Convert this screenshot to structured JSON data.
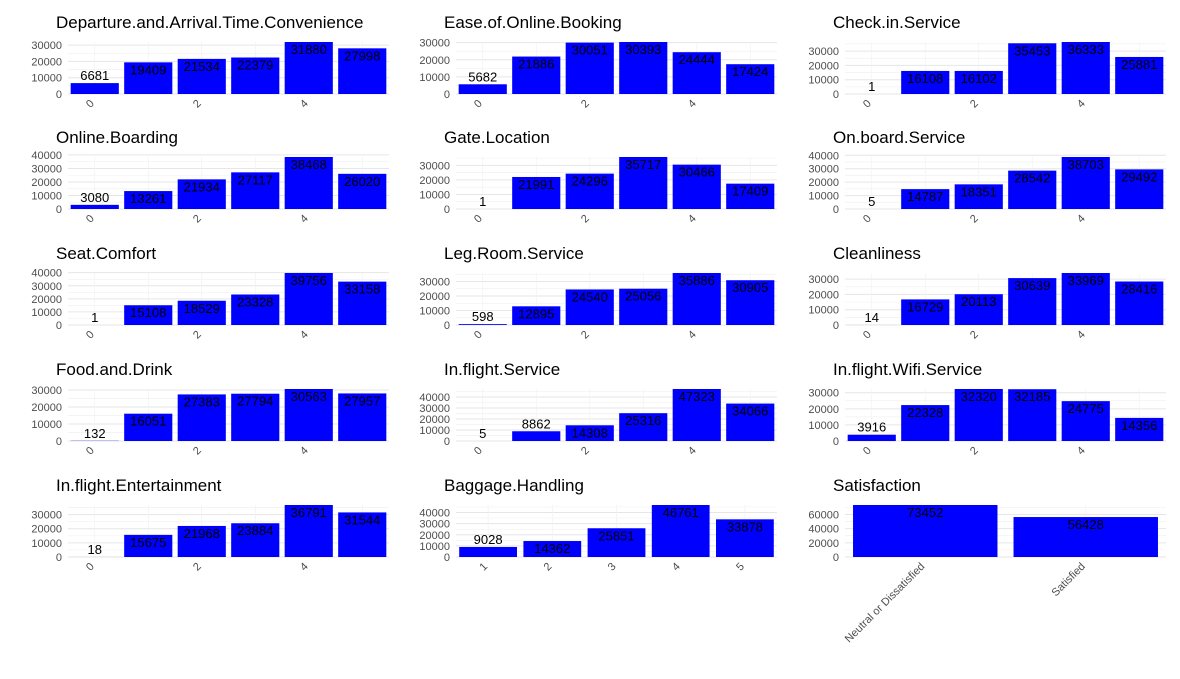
{
  "chart_data": [
    {
      "type": "bar",
      "title": "Departure.and.Arrival.Time.Convenience",
      "categories": [
        "0",
        "1",
        "2",
        "3",
        "4",
        "5"
      ],
      "x_tick_labels": [
        "0",
        "2",
        "4"
      ],
      "values": [
        6681,
        19409,
        21534,
        22379,
        31880,
        27998
      ],
      "y_tick_labels": [
        "0",
        "10000",
        "20000",
        "30000"
      ],
      "ylim": [
        0,
        31880
      ],
      "bar_color": "#0000FF",
      "grid": true
    },
    {
      "type": "bar",
      "title": "Ease.of.Online.Booking",
      "categories": [
        "0",
        "1",
        "2",
        "3",
        "4",
        "5"
      ],
      "x_tick_labels": [
        "0",
        "2",
        "4"
      ],
      "values": [
        5682,
        21886,
        30051,
        30393,
        24444,
        17424
      ],
      "y_tick_labels": [
        "0",
        "10000",
        "20000",
        "30000"
      ],
      "ylim": [
        0,
        30393
      ],
      "bar_color": "#0000FF",
      "grid": true
    },
    {
      "type": "bar",
      "title": "Check.in.Service",
      "categories": [
        "0",
        "1",
        "2",
        "3",
        "4",
        "5"
      ],
      "x_tick_labels": [
        "0",
        "2",
        "4"
      ],
      "values": [
        1,
        16108,
        16102,
        35453,
        36333,
        25881
      ],
      "y_tick_labels": [
        "0",
        "10000",
        "20000",
        "30000"
      ],
      "ylim": [
        0,
        36333
      ],
      "bar_color": "#0000FF",
      "grid": true
    },
    {
      "type": "bar",
      "title": "Online.Boarding",
      "categories": [
        "0",
        "1",
        "2",
        "3",
        "4",
        "5"
      ],
      "x_tick_labels": [
        "0",
        "2",
        "4"
      ],
      "values": [
        3080,
        13261,
        21934,
        27117,
        38468,
        26020
      ],
      "y_tick_labels": [
        "0",
        "10000",
        "20000",
        "30000",
        "40000"
      ],
      "ylim": [
        0,
        38468
      ],
      "bar_color": "#0000FF",
      "grid": true
    },
    {
      "type": "bar",
      "title": "Gate.Location",
      "categories": [
        "0",
        "1",
        "2",
        "3",
        "4",
        "5"
      ],
      "x_tick_labels": [
        "0",
        "2",
        "4"
      ],
      "values": [
        1,
        21991,
        24296,
        35717,
        30466,
        17409
      ],
      "y_tick_labels": [
        "0",
        "10000",
        "20000",
        "30000"
      ],
      "ylim": [
        0,
        35717
      ],
      "bar_color": "#0000FF",
      "grid": true
    },
    {
      "type": "bar",
      "title": "On.board.Service",
      "categories": [
        "0",
        "1",
        "2",
        "3",
        "4",
        "5"
      ],
      "x_tick_labels": [
        "0",
        "2",
        "4"
      ],
      "values": [
        5,
        14787,
        18351,
        28542,
        38703,
        29492
      ],
      "y_tick_labels": [
        "0",
        "10000",
        "20000",
        "30000",
        "40000"
      ],
      "ylim": [
        0,
        38703
      ],
      "bar_color": "#0000FF",
      "grid": true
    },
    {
      "type": "bar",
      "title": "Seat.Comfort",
      "categories": [
        "0",
        "1",
        "2",
        "3",
        "4",
        "5"
      ],
      "x_tick_labels": [
        "0",
        "2",
        "4"
      ],
      "values": [
        1,
        15108,
        18529,
        23328,
        39756,
        33158
      ],
      "y_tick_labels": [
        "0",
        "10000",
        "20000",
        "30000",
        "40000"
      ],
      "ylim": [
        0,
        39756
      ],
      "bar_color": "#0000FF",
      "grid": true
    },
    {
      "type": "bar",
      "title": "Leg.Room.Service",
      "categories": [
        "0",
        "1",
        "2",
        "3",
        "4",
        "5"
      ],
      "x_tick_labels": [
        "0",
        "2",
        "4"
      ],
      "values": [
        598,
        12895,
        24540,
        25056,
        35886,
        30905
      ],
      "y_tick_labels": [
        "0",
        "10000",
        "20000",
        "30000"
      ],
      "ylim": [
        0,
        35886
      ],
      "bar_color": "#0000FF",
      "grid": true
    },
    {
      "type": "bar",
      "title": "Cleanliness",
      "categories": [
        "0",
        "1",
        "2",
        "3",
        "4",
        "5"
      ],
      "x_tick_labels": [
        "0",
        "2",
        "4"
      ],
      "values": [
        14,
        16729,
        20113,
        30639,
        33969,
        28416
      ],
      "y_tick_labels": [
        "0",
        "10000",
        "20000",
        "30000"
      ],
      "ylim": [
        0,
        33969
      ],
      "bar_color": "#0000FF",
      "grid": true
    },
    {
      "type": "bar",
      "title": "Food.and.Drink",
      "categories": [
        "0",
        "1",
        "2",
        "3",
        "4",
        "5"
      ],
      "x_tick_labels": [
        "0",
        "2",
        "4"
      ],
      "values": [
        132,
        16051,
        27383,
        27794,
        30563,
        27957
      ],
      "y_tick_labels": [
        "0",
        "10000",
        "20000",
        "30000"
      ],
      "ylim": [
        0,
        30563
      ],
      "bar_color": "#0000FF",
      "grid": true
    },
    {
      "type": "bar",
      "title": "In.flight.Service",
      "categories": [
        "0",
        "1",
        "2",
        "3",
        "4",
        "5"
      ],
      "x_tick_labels": [
        "0",
        "2",
        "4"
      ],
      "values": [
        5,
        8862,
        14308,
        25316,
        47323,
        34066
      ],
      "y_tick_labels": [
        "0",
        "10000",
        "20000",
        "30000",
        "40000"
      ],
      "ylim": [
        0,
        47323
      ],
      "bar_color": "#0000FF",
      "grid": true
    },
    {
      "type": "bar",
      "title": "In.flight.Wifi.Service",
      "categories": [
        "0",
        "1",
        "2",
        "3",
        "4",
        "5"
      ],
      "x_tick_labels": [
        "0",
        "2",
        "4"
      ],
      "values": [
        3916,
        22328,
        32320,
        32185,
        24775,
        14356
      ],
      "y_tick_labels": [
        "0",
        "10000",
        "20000",
        "30000"
      ],
      "ylim": [
        0,
        32320
      ],
      "bar_color": "#0000FF",
      "grid": true
    },
    {
      "type": "bar",
      "title": "In.flight.Entertainment",
      "categories": [
        "0",
        "1",
        "2",
        "3",
        "4",
        "5"
      ],
      "x_tick_labels": [
        "0",
        "2",
        "4"
      ],
      "values": [
        18,
        15675,
        21968,
        23884,
        36791,
        31544
      ],
      "y_tick_labels": [
        "0",
        "10000",
        "20000",
        "30000"
      ],
      "ylim": [
        0,
        36791
      ],
      "bar_color": "#0000FF",
      "grid": true
    },
    {
      "type": "bar",
      "title": "Baggage.Handling",
      "categories": [
        "1",
        "2",
        "3",
        "4",
        "5"
      ],
      "x_tick_labels": [
        "1",
        "2",
        "3",
        "4",
        "5"
      ],
      "values": [
        9028,
        14362,
        25851,
        46761,
        33878
      ],
      "y_tick_labels": [
        "0",
        "10000",
        "20000",
        "30000",
        "40000"
      ],
      "ylim": [
        0,
        46761
      ],
      "bar_color": "#0000FF",
      "grid": true
    },
    {
      "type": "bar",
      "title": "Satisfaction",
      "categories": [
        "Neutral or Dissatisfied",
        "Satisfied"
      ],
      "x_tick_labels": [
        "Neutral or Dissatisfied",
        "Satisfied"
      ],
      "values": [
        73452,
        56428
      ],
      "y_tick_labels": [
        "0",
        "20000",
        "40000",
        "60000"
      ],
      "ylim": [
        0,
        73452
      ],
      "bar_color": "#0000FF",
      "grid": true
    }
  ]
}
